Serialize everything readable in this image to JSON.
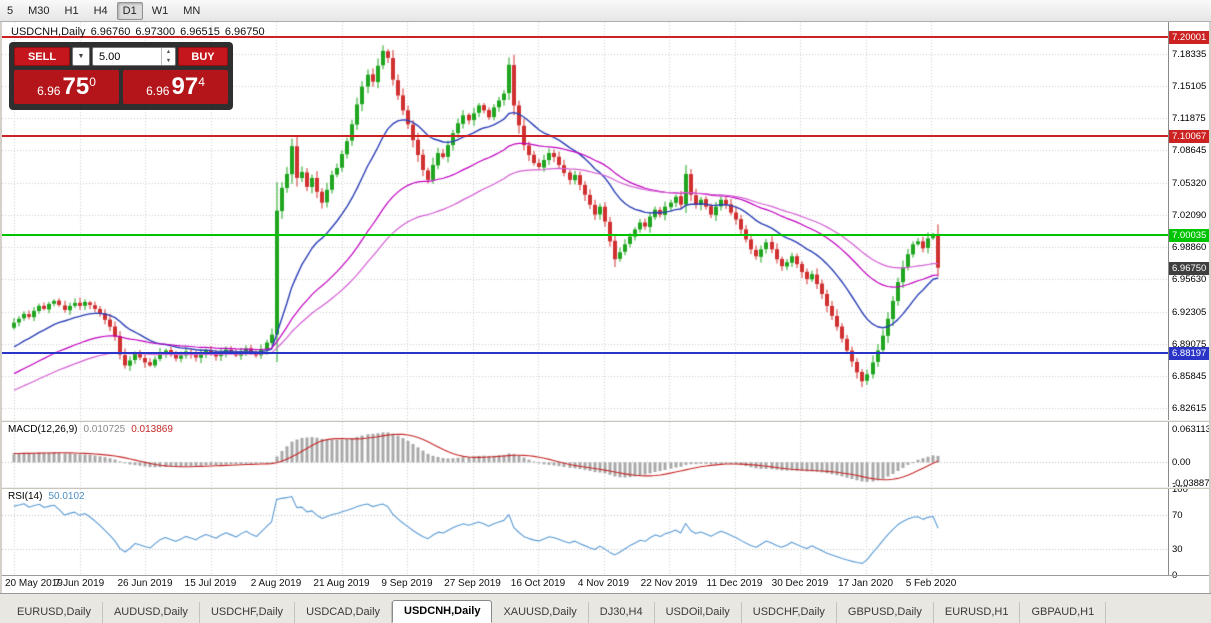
{
  "timeframes": {
    "items": [
      "5",
      "M30",
      "H1",
      "H4",
      "D1",
      "W1",
      "MN"
    ],
    "active": "D1"
  },
  "chart_header": {
    "symbol": "USDCNH,Daily",
    "open": "6.96760",
    "high": "6.97300",
    "low": "6.96515",
    "close": "6.96750"
  },
  "trade": {
    "sell_label": "SELL",
    "buy_label": "BUY",
    "volume": "5.00",
    "sell_price": {
      "base": "6.96",
      "pips": "75",
      "frac": "0"
    },
    "buy_price": {
      "base": "6.96",
      "pips": "97",
      "frac": "4"
    }
  },
  "icons": {
    "dropdown": "▼",
    "step_up": "▲",
    "step_down": "▼"
  },
  "price_axis": {
    "labels": [
      "7.18335",
      "7.15105",
      "7.11875",
      "7.08645",
      "7.05320",
      "7.02090",
      "6.98860",
      "6.95630",
      "6.92305",
      "6.89075",
      "6.85845",
      "6.82615"
    ],
    "current": {
      "label": "6.96750",
      "price": 6.9675,
      "color": "#3f3f3f"
    }
  },
  "hlines": [
    {
      "price": 7.20001,
      "label": "7.20001",
      "color": "#cc2222"
    },
    {
      "price": 7.10067,
      "label": "7.10067",
      "color": "#cc2222"
    },
    {
      "price": 7.00035,
      "label": "7.00035",
      "color": "#00c400"
    },
    {
      "price": 6.88197,
      "label": "6.88197",
      "color": "#2a35c8"
    }
  ],
  "macd": {
    "title": "MACD(12,26,9)",
    "value_main": "0.010725",
    "value_signal": "0.013869",
    "axis_labels": [
      "0.063113",
      "0.00",
      "-0.038872"
    ]
  },
  "rsi": {
    "title": "RSI(14)",
    "value": "50.0102",
    "axis_labels": [
      "100",
      "70",
      "30",
      "0"
    ]
  },
  "date_axis": [
    "20 May 2019",
    "7 Jun 2019",
    "26 Jun 2019",
    "15 Jul 2019",
    "2 Aug 2019",
    "21 Aug 2019",
    "9 Sep 2019",
    "27 Sep 2019",
    "16 Oct 2019",
    "4 Nov 2019",
    "22 Nov 2019",
    "11 Dec 2019",
    "30 Dec 2019",
    "17 Jan 2020",
    "5 Feb 2020"
  ],
  "tabs": {
    "active_index": 4,
    "items": [
      "EURUSD,Daily",
      "AUDUSD,Daily",
      "USDCHF,Daily",
      "USDCAD,Daily",
      "USDCNH,Daily",
      "XAUUSD,Daily",
      "DJ30,H4",
      "USDOil,Daily",
      "USDCHF,Daily",
      "GBPUSD,Daily",
      "EURUSD,H1",
      "GBPAUD,H1"
    ]
  },
  "colors": {
    "grid": "#cfcfcf",
    "candle_up": "#1fa51f",
    "candle_down": "#d03030",
    "ma_blue": "#2b3fb5",
    "ma_magenta": "#c000c0",
    "ma_violet": "#d45fd4",
    "macd_hist": "#a8a8a8",
    "macd_signal": "#c62828",
    "rsi_line": "#5b9bd5",
    "level_dotted": "#bdbdbd"
  },
  "chart_data": {
    "type": "candlestick",
    "symbol": "USDCNH",
    "timeframe": "Daily",
    "price_range": [
      6.814,
      7.2151
    ],
    "prehistory": {
      "bars": 60,
      "start": 6.76,
      "wiggle": 0.004
    },
    "closes": [
      6.912,
      6.916,
      6.921,
      6.918,
      6.924,
      6.929,
      6.926,
      6.931,
      6.934,
      6.93,
      6.925,
      6.929,
      6.932,
      6.929,
      6.933,
      6.93,
      6.926,
      6.921,
      6.915,
      6.908,
      6.898,
      6.88,
      6.869,
      6.874,
      6.881,
      6.877,
      6.872,
      6.869,
      6.875,
      6.881,
      6.884,
      6.88,
      6.876,
      6.879,
      6.883,
      6.88,
      6.877,
      6.881,
      6.884,
      6.881,
      6.878,
      6.882,
      6.885,
      6.882,
      6.879,
      6.883,
      6.886,
      6.882,
      6.879,
      6.885,
      6.892,
      6.9,
      7.025,
      7.048,
      7.062,
      7.09,
      7.058,
      7.064,
      7.049,
      7.058,
      7.044,
      7.033,
      7.046,
      7.061,
      7.068,
      7.082,
      7.095,
      7.112,
      7.132,
      7.15,
      7.162,
      7.155,
      7.171,
      7.186,
      7.179,
      7.157,
      7.141,
      7.126,
      7.112,
      7.096,
      7.081,
      7.066,
      7.056,
      7.071,
      7.083,
      7.079,
      7.091,
      7.103,
      7.113,
      7.121,
      7.116,
      7.123,
      7.131,
      7.126,
      7.119,
      7.129,
      7.136,
      7.143,
      7.172,
      7.131,
      7.111,
      7.091,
      7.081,
      7.073,
      7.069,
      7.076,
      7.083,
      7.079,
      7.071,
      7.063,
      7.056,
      7.061,
      7.051,
      7.041,
      7.031,
      7.021,
      7.029,
      7.014,
      6.994,
      6.976,
      6.983,
      6.991,
      6.999,
      7.006,
      7.013,
      7.009,
      7.019,
      7.026,
      7.021,
      7.029,
      7.033,
      7.039,
      7.031,
      7.062,
      7.041,
      7.031,
      7.036,
      7.029,
      7.021,
      7.029,
      7.036,
      7.031,
      7.023,
      7.016,
      7.006,
      6.996,
      6.986,
      6.979,
      6.986,
      6.993,
      6.986,
      6.976,
      6.969,
      6.973,
      6.979,
      6.971,
      6.963,
      6.956,
      6.961,
      6.951,
      6.941,
      6.929,
      6.919,
      6.908,
      6.896,
      6.884,
      6.873,
      6.862,
      6.853,
      6.86,
      6.872,
      6.884,
      6.899,
      6.916,
      6.934,
      6.953,
      6.968,
      6.981,
      6.991,
      6.994,
      6.987,
      6.997,
      7.001,
      6.9675
    ],
    "indicators": {
      "mas": [
        {
          "type": "ema",
          "period": 18
        },
        {
          "type": "ema",
          "period": 42
        },
        {
          "type": "ema",
          "period": 62
        }
      ],
      "macd": {
        "fast": 12,
        "slow": 26,
        "signal": 9
      },
      "rsi": {
        "period": 14,
        "levels": [
          70,
          30
        ]
      }
    }
  }
}
